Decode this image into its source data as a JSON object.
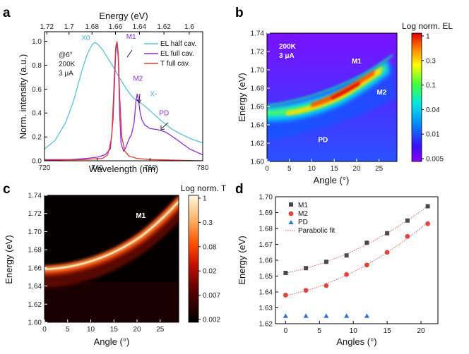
{
  "chart_data": [
    {
      "panel": "a",
      "type": "line",
      "xlabel": "Wavelength (nm)",
      "ylabel": "Norm. intensity (a.u.)",
      "top_xlabel": "Energy (eV)",
      "xlim": [
        720,
        780
      ],
      "ylim": [
        0,
        1.08
      ],
      "xticks": [
        "720",
        "740",
        "760",
        "780"
      ],
      "yticks": [
        "0.0",
        "0.2",
        "0.4",
        "0.6",
        "0.8",
        "1.0"
      ],
      "top_ticks": [
        {
          "label": "1.72",
          "wavelength": 720.9
        },
        {
          "label": "1.7",
          "wavelength": 729.3
        },
        {
          "label": "1.68",
          "wavelength": 738.0
        },
        {
          "label": "1.66",
          "wavelength": 746.9
        },
        {
          "label": "1.64",
          "wavelength": 756.0
        },
        {
          "label": "1.62",
          "wavelength": 765.3
        },
        {
          "label": "1.6",
          "wavelength": 774.9
        }
      ],
      "inset_text": [
        "@6°",
        "200K",
        "3 μA"
      ],
      "legend": [
        "EL half cav.",
        "EL full cav.",
        "T full cav."
      ],
      "annotations": [
        {
          "label": "X0",
          "x": 734.0,
          "y": 1.01,
          "color": "#4bb4d6"
        },
        {
          "label": "M1",
          "x": 751.0,
          "y": 1.02,
          "color": "#8a2be2"
        },
        {
          "label": "M2",
          "x": 753.6,
          "y": 0.67,
          "color": "#8a2be2"
        },
        {
          "label": "X-",
          "x": 760.0,
          "y": 0.54,
          "color": "#4bb4d6"
        },
        {
          "label": "PD",
          "x": 763.5,
          "y": 0.38,
          "color": "#8a2be2"
        }
      ],
      "series": [
        {
          "name": "EL half cav.",
          "color": "#56c0e0",
          "x": [
            720,
            724,
            728,
            731,
            734,
            736,
            738,
            739,
            740,
            742,
            744,
            746,
            748,
            750,
            752,
            754,
            756,
            758,
            760,
            764,
            768,
            772,
            776,
            780
          ],
          "y": [
            0.1,
            0.17,
            0.32,
            0.5,
            0.74,
            0.88,
            0.97,
            0.99,
            0.98,
            0.93,
            0.86,
            0.79,
            0.71,
            0.64,
            0.57,
            0.52,
            0.49,
            0.46,
            0.42,
            0.34,
            0.27,
            0.22,
            0.18,
            0.15
          ]
        },
        {
          "name": "EL full cav.",
          "color": "#8a2be2",
          "x": [
            720,
            730,
            736,
            740,
            743,
            745,
            746,
            747,
            747.5,
            748,
            748.5,
            749,
            750,
            751,
            752,
            753,
            754,
            754.7,
            755.2,
            755.7,
            756.3,
            757,
            758,
            760,
            763,
            766,
            770,
            775,
            780
          ],
          "y": [
            0.01,
            0.01,
            0.02,
            0.03,
            0.05,
            0.1,
            0.35,
            0.9,
            1.0,
            0.85,
            0.4,
            0.15,
            0.08,
            0.12,
            0.18,
            0.22,
            0.32,
            0.5,
            0.56,
            0.5,
            0.4,
            0.34,
            0.3,
            0.27,
            0.26,
            0.24,
            0.18,
            0.1,
            0.05
          ]
        },
        {
          "name": "T full cav.",
          "color": "#e8382e",
          "x": [
            720,
            735,
            742,
            744,
            745.5,
            746.5,
            747,
            747.5,
            748,
            748.5,
            749.3,
            750.5,
            752,
            755,
            760,
            770,
            780
          ],
          "y": [
            0.005,
            0.01,
            0.02,
            0.05,
            0.2,
            0.7,
            0.95,
            1.0,
            0.9,
            0.55,
            0.2,
            0.08,
            0.04,
            0.02,
            0.01,
            0.005,
            0.0
          ]
        }
      ]
    },
    {
      "panel": "b",
      "type": "heatmap",
      "xlabel": "Angle (°)",
      "ylabel": "Energy (eV)",
      "xlim": [
        0,
        29
      ],
      "ylim": [
        1.6,
        1.74
      ],
      "xticks": [
        "0",
        "5",
        "10",
        "15",
        "20",
        "25"
      ],
      "yticks": [
        "1.60",
        "1.62",
        "1.64",
        "1.66",
        "1.68",
        "1.70",
        "1.72",
        "1.74"
      ],
      "colorbar_title": "Log norm. EL",
      "colorbar_ticks": [
        "1",
        "0.3",
        "0.1",
        "0.04",
        "0.01",
        "0.005"
      ],
      "inset_text": [
        "200K",
        "3 μA"
      ],
      "labels": [
        {
          "label": "M1",
          "angle": 20,
          "energy": 1.707
        },
        {
          "label": "M2",
          "angle": 25.6,
          "energy": 1.673
        },
        {
          "label": "PD",
          "angle": 12.5,
          "energy": 1.621
        }
      ]
    },
    {
      "panel": "c",
      "type": "heatmap",
      "xlabel": "Angle (°)",
      "ylabel": "Energy (eV)",
      "xlim": [
        0,
        29
      ],
      "ylim": [
        1.6,
        1.74
      ],
      "xticks": [
        "0",
        "5",
        "10",
        "15",
        "20",
        "25"
      ],
      "yticks": [
        "1.60",
        "1.62",
        "1.64",
        "1.66",
        "1.68",
        "1.70",
        "1.72",
        "1.74"
      ],
      "colorbar_title": "Log norm. T",
      "colorbar_ticks": [
        "1",
        "0.3",
        "0.08",
        "0.02",
        "0.007",
        "0.002"
      ],
      "labels": [
        {
          "label": "M1",
          "angle": 20.8,
          "energy": 1.715
        }
      ]
    },
    {
      "panel": "d",
      "type": "scatter",
      "xlabel": "Angles (°)",
      "ylabel": "Energy (eV)",
      "xlim": [
        -1.5,
        22.5
      ],
      "ylim": [
        1.62,
        1.7
      ],
      "xticks": [
        "0",
        "5",
        "10",
        "15",
        "20"
      ],
      "yticks": [
        "1.62",
        "1.63",
        "1.64",
        "1.65",
        "1.66",
        "1.67",
        "1.68",
        "1.69",
        "1.70"
      ],
      "legend": [
        "M1",
        "M2",
        "PD",
        "Parabolic fit"
      ],
      "series": [
        {
          "name": "M1",
          "marker": "square",
          "color": "#4a4a4a",
          "x": [
            0,
            3,
            6,
            9,
            12,
            15,
            18,
            21
          ],
          "y": [
            1.652,
            1.655,
            1.659,
            1.663,
            1.671,
            1.677,
            1.685,
            1.694
          ]
        },
        {
          "name": "M2",
          "marker": "circle",
          "color": "#e8403a",
          "x": [
            0,
            3,
            6,
            9,
            12,
            15,
            18,
            21
          ],
          "y": [
            1.638,
            1.641,
            1.644,
            1.651,
            1.657,
            1.665,
            1.675,
            1.683
          ]
        },
        {
          "name": "PD",
          "marker": "triangle",
          "color": "#2f6fd6",
          "x": [
            0,
            3,
            6,
            9,
            12
          ],
          "y": [
            1.625,
            1.625,
            1.625,
            1.625,
            1.625
          ]
        }
      ],
      "fit": {
        "name": "Parabolic fit",
        "color": "#e8403a"
      }
    }
  ]
}
